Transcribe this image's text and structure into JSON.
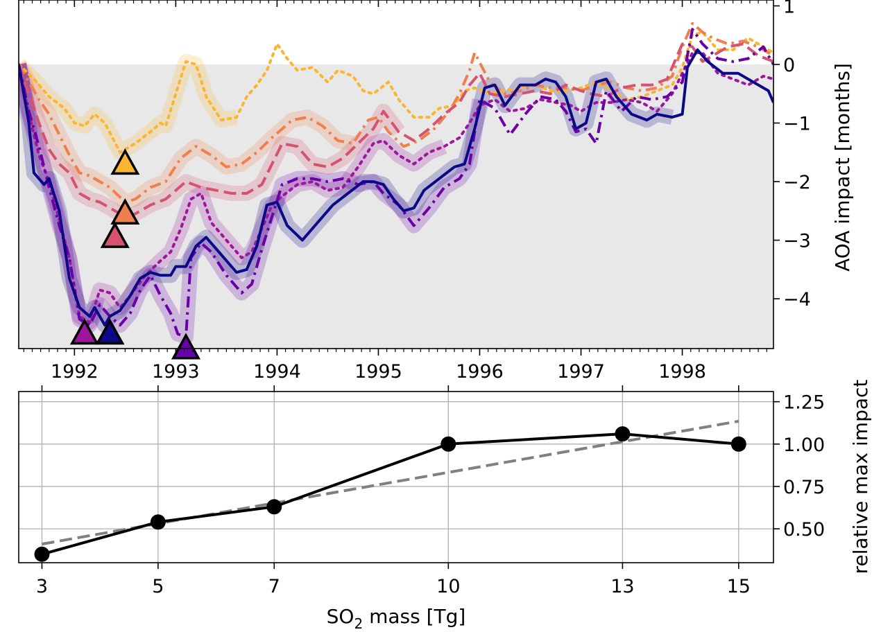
{
  "chart_data": [
    {
      "type": "line",
      "xlim": [
        1991.45,
        1998.9
      ],
      "ylim": [
        -4.85,
        1.1
      ],
      "x_ticks": [
        1992,
        1993,
        1994,
        1995,
        1996,
        1997,
        1998
      ],
      "x_tick_labels": [
        "1992",
        "1993",
        "1994",
        "1995",
        "1996",
        "1997",
        "1998"
      ],
      "y_ticks": [
        -4,
        -3,
        -2,
        -1,
        0,
        1
      ],
      "y_tick_labels": [
        "−4",
        "−3",
        "−2",
        "−1",
        "0",
        "1"
      ],
      "ylabel": "AOA impact [months]",
      "yaxis_side": "right",
      "background": "#e8e8e8",
      "series": [
        {
          "color": "#fcb52e",
          "style": "dotted",
          "x": [
            1991.45,
            1991.6,
            1991.75,
            1991.9,
            1992.0,
            1992.1,
            1992.2,
            1992.3,
            1992.45,
            1992.6,
            1992.75,
            1992.85,
            1992.9,
            1993.0,
            1993.1,
            1993.2,
            1993.3,
            1993.45,
            1993.6,
            1993.7,
            1993.8,
            1993.9,
            1994.0,
            1994.1,
            1994.2,
            1994.35,
            1994.5,
            1994.6,
            1994.75,
            1994.85,
            1994.95,
            1995.1,
            1995.2,
            1995.35,
            1995.5,
            1995.6,
            1995.75,
            1995.85,
            1995.95,
            1996.1,
            1996.25,
            1996.4,
            1996.55,
            1996.7,
            1996.85,
            1997.0,
            1997.15,
            1997.3,
            1997.45,
            1997.6,
            1997.75,
            1997.9,
            1998.0,
            1998.1,
            1998.2,
            1998.35,
            1998.5,
            1998.65,
            1998.8,
            1998.9
          ],
          "y": [
            0.0,
            -0.25,
            -0.55,
            -0.75,
            -1.0,
            -1.05,
            -0.85,
            -1.0,
            -1.5,
            -1.35,
            -1.15,
            -1.0,
            -1.05,
            -0.5,
            0.05,
            0.0,
            -0.55,
            -0.95,
            -0.9,
            -0.55,
            -0.35,
            -0.1,
            0.35,
            0.1,
            -0.1,
            -0.05,
            -0.3,
            -0.1,
            -0.2,
            -0.45,
            -0.5,
            -0.3,
            -0.6,
            -0.9,
            -0.9,
            -0.75,
            -0.7,
            -0.45,
            -0.4,
            -0.5,
            -0.45,
            -0.4,
            -0.35,
            -0.45,
            -0.45,
            -0.4,
            -0.3,
            -0.45,
            -0.6,
            -0.55,
            -0.45,
            -0.35,
            -0.05,
            0.5,
            0.55,
            0.25,
            0.25,
            0.45,
            0.3,
            0.2
          ],
          "envelope_end": 1993.6
        },
        {
          "color": "#f07f4f",
          "style": "dashdot",
          "x": [
            1991.45,
            1991.55,
            1991.65,
            1991.75,
            1991.85,
            1991.95,
            1992.05,
            1992.15,
            1992.25,
            1992.35,
            1992.5,
            1992.6,
            1992.75,
            1992.9,
            1993.05,
            1993.2,
            1993.35,
            1993.5,
            1993.65,
            1993.8,
            1993.95,
            1994.05,
            1994.15,
            1994.3,
            1994.45,
            1994.6,
            1994.75,
            1994.9,
            1995.0,
            1995.1,
            1995.25,
            1995.4,
            1995.55,
            1995.7,
            1995.8,
            1995.9,
            1995.95,
            1996.1,
            1996.25,
            1996.4,
            1996.55,
            1996.7,
            1996.85,
            1997.0,
            1997.15,
            1997.3,
            1997.45,
            1997.6,
            1997.75,
            1997.9,
            1998.0,
            1998.1,
            1998.2,
            1998.3,
            1998.45,
            1998.6,
            1998.75,
            1998.9
          ],
          "y": [
            0.0,
            -0.3,
            -0.6,
            -0.85,
            -1.2,
            -1.55,
            -1.85,
            -1.9,
            -2.0,
            -2.1,
            -2.35,
            -2.3,
            -2.1,
            -2.0,
            -1.6,
            -1.4,
            -1.55,
            -1.75,
            -1.7,
            -1.5,
            -1.25,
            -1.1,
            -0.95,
            -0.9,
            -1.05,
            -1.3,
            -1.35,
            -0.95,
            -0.9,
            -1.15,
            -1.4,
            -1.3,
            -1.1,
            -0.8,
            -0.5,
            -0.1,
            0.2,
            -0.3,
            -0.5,
            -0.45,
            -0.35,
            -0.4,
            -0.4,
            -0.45,
            -0.35,
            -0.3,
            -0.4,
            -0.45,
            -0.4,
            -0.2,
            0.3,
            0.7,
            0.55,
            0.45,
            0.35,
            0.4,
            0.3,
            0.15
          ],
          "envelope_end": 1994.85
        },
        {
          "color": "#d5536f",
          "style": "dashed",
          "x": [
            1991.45,
            1991.55,
            1991.65,
            1991.75,
            1991.85,
            1991.95,
            1992.05,
            1992.15,
            1992.25,
            1992.35,
            1992.5,
            1992.6,
            1992.75,
            1992.9,
            1993.0,
            1993.1,
            1993.25,
            1993.4,
            1993.55,
            1993.7,
            1993.85,
            1993.95,
            1994.05,
            1994.2,
            1994.35,
            1994.5,
            1994.65,
            1994.8,
            1994.95,
            1995.05,
            1995.2,
            1995.35,
            1995.5,
            1995.65,
            1995.8,
            1995.9,
            1996.0,
            1996.1,
            1996.25,
            1996.4,
            1996.55,
            1996.7,
            1996.85,
            1997.0,
            1997.1,
            1997.25,
            1997.4,
            1997.55,
            1997.7,
            1997.85,
            1998.0,
            1998.1,
            1998.2,
            1998.3,
            1998.45,
            1998.6,
            1998.75,
            1998.9
          ],
          "y": [
            0.0,
            -0.5,
            -1.0,
            -1.45,
            -1.7,
            -1.85,
            -2.2,
            -2.3,
            -2.35,
            -2.45,
            -2.6,
            -2.55,
            -2.4,
            -2.3,
            -2.15,
            -2.0,
            -2.1,
            -2.15,
            -2.2,
            -2.2,
            -2.05,
            -1.7,
            -1.35,
            -1.4,
            -1.7,
            -1.75,
            -1.6,
            -1.35,
            -1.1,
            -0.8,
            -1.15,
            -1.3,
            -1.1,
            -0.85,
            -0.65,
            -0.35,
            -0.15,
            -0.5,
            -0.55,
            -0.5,
            -0.45,
            -0.5,
            -0.35,
            -0.45,
            -0.5,
            -0.55,
            -0.4,
            -0.35,
            -0.35,
            -0.25,
            0.35,
            0.3,
            0.05,
            0.15,
            0.3,
            0.35,
            0.15,
            0.05
          ],
          "envelope_end": 1995.25
        },
        {
          "color": "#9c179e",
          "style": "dotted",
          "x": [
            1991.45,
            1991.55,
            1991.65,
            1991.75,
            1991.85,
            1991.95,
            1992.05,
            1992.15,
            1992.25,
            1992.35,
            1992.45,
            1992.55,
            1992.7,
            1992.85,
            1992.95,
            1993.05,
            1993.15,
            1993.25,
            1993.35,
            1993.5,
            1993.65,
            1993.75,
            1993.85,
            1993.95,
            1994.05,
            1994.2,
            1994.35,
            1994.5,
            1994.65,
            1994.8,
            1994.95,
            1995.05,
            1995.2,
            1995.35,
            1995.5,
            1995.65,
            1995.8,
            1995.9,
            1996.0,
            1996.15,
            1996.3,
            1996.45,
            1996.6,
            1996.75,
            1996.9,
            1997.0,
            1997.15,
            1997.3,
            1997.45,
            1997.6,
            1997.75,
            1997.9,
            1998.0,
            1998.1,
            1998.2,
            1998.35,
            1998.5,
            1998.65,
            1998.8,
            1998.9
          ],
          "y": [
            0.0,
            -0.85,
            -1.55,
            -2.0,
            -2.65,
            -3.3,
            -4.3,
            -4.4,
            -3.85,
            -3.9,
            -4.15,
            -3.95,
            -3.6,
            -3.35,
            -3.2,
            -2.8,
            -2.3,
            -2.2,
            -2.7,
            -3.0,
            -3.3,
            -3.2,
            -2.8,
            -2.4,
            -2.25,
            -2.05,
            -2.0,
            -2.15,
            -2.1,
            -1.75,
            -1.35,
            -1.3,
            -1.55,
            -1.7,
            -1.5,
            -1.4,
            -1.25,
            -1.0,
            -0.7,
            -0.6,
            -0.8,
            -0.75,
            -0.6,
            -0.65,
            -0.7,
            -0.8,
            -0.65,
            -0.65,
            -0.6,
            -0.65,
            -0.8,
            -0.5,
            -0.15,
            0.2,
            0.2,
            -0.15,
            -0.25,
            -0.35,
            -0.2,
            -0.25
          ],
          "envelope_end": 1995.75
        },
        {
          "color": "#6a00a8",
          "style": "dashdot",
          "x": [
            1991.45,
            1991.55,
            1991.65,
            1991.75,
            1991.85,
            1991.95,
            1992.05,
            1992.15,
            1992.25,
            1992.35,
            1992.45,
            1992.55,
            1992.65,
            1992.75,
            1992.85,
            1992.95,
            1993.02,
            1993.1,
            1993.15,
            1993.25,
            1993.35,
            1993.5,
            1993.65,
            1993.75,
            1993.85,
            1993.95,
            1994.05,
            1994.2,
            1994.35,
            1994.5,
            1994.65,
            1994.8,
            1994.95,
            1995.05,
            1995.2,
            1995.35,
            1995.5,
            1995.65,
            1995.8,
            1995.9,
            1996.0,
            1996.15,
            1996.3,
            1996.45,
            1996.6,
            1996.75,
            1996.85,
            1996.95,
            1997.05,
            1997.15,
            1997.25,
            1997.4,
            1997.55,
            1997.7,
            1997.85,
            1998.0,
            1998.1,
            1998.2,
            1998.35,
            1998.5,
            1998.65,
            1998.8,
            1998.9
          ],
          "y": [
            0.0,
            -0.8,
            -1.4,
            -2.1,
            -2.75,
            -3.3,
            -4.35,
            -4.45,
            -4.1,
            -4.3,
            -4.45,
            -4.25,
            -3.85,
            -3.6,
            -3.95,
            -4.25,
            -4.6,
            -4.65,
            -3.3,
            -3.05,
            -3.2,
            -3.6,
            -3.9,
            -3.75,
            -3.15,
            -2.6,
            -2.05,
            -1.95,
            -1.95,
            -2.0,
            -1.95,
            -2.05,
            -2.0,
            -2.2,
            -2.4,
            -2.75,
            -2.45,
            -2.1,
            -1.95,
            -1.7,
            -0.6,
            -0.75,
            -1.2,
            -0.85,
            -0.55,
            -0.6,
            -0.8,
            -1.15,
            -1.1,
            -1.35,
            -0.45,
            -0.8,
            -0.55,
            -0.6,
            -0.55,
            -0.3,
            0.6,
            0.35,
            0.1,
            0.05,
            0.1,
            0.3,
            0.0
          ],
          "envelope_end": 1996.0
        },
        {
          "color": "#0d0887",
          "style": "solid",
          "x": [
            1991.45,
            1991.55,
            1991.6,
            1991.7,
            1991.75,
            1991.85,
            1991.95,
            1992.05,
            1992.15,
            1992.2,
            1992.3,
            1992.35,
            1992.45,
            1992.55,
            1992.65,
            1992.75,
            1992.85,
            1992.95,
            1993.0,
            1993.1,
            1993.2,
            1993.3,
            1993.45,
            1993.6,
            1993.7,
            1993.8,
            1993.9,
            1994.0,
            1994.1,
            1994.25,
            1994.4,
            1994.55,
            1994.7,
            1994.85,
            1994.95,
            1995.05,
            1995.15,
            1995.25,
            1995.35,
            1995.45,
            1995.6,
            1995.75,
            1995.85,
            1995.95,
            1996.05,
            1996.15,
            1996.25,
            1996.4,
            1996.55,
            1996.65,
            1996.75,
            1996.85,
            1996.95,
            1997.05,
            1997.15,
            1997.25,
            1997.35,
            1997.5,
            1997.65,
            1997.75,
            1997.9,
            1998.0,
            1998.05,
            1998.15,
            1998.25,
            1998.4,
            1998.55,
            1998.7,
            1998.85,
            1998.9
          ],
          "y": [
            0.0,
            -1.0,
            -1.85,
            -2.05,
            -1.95,
            -2.5,
            -3.65,
            -4.15,
            -4.3,
            -4.15,
            -4.45,
            -4.3,
            -4.2,
            -3.95,
            -3.65,
            -3.55,
            -3.6,
            -3.6,
            -3.45,
            -3.45,
            -3.1,
            -2.95,
            -3.25,
            -3.55,
            -3.5,
            -3.1,
            -2.4,
            -2.35,
            -2.75,
            -3.0,
            -2.7,
            -2.4,
            -2.2,
            -2.0,
            -2.0,
            -2.05,
            -2.3,
            -2.5,
            -2.45,
            -2.15,
            -1.95,
            -1.75,
            -1.7,
            -1.1,
            -0.4,
            -0.35,
            -0.7,
            -0.35,
            -0.35,
            -0.25,
            -0.3,
            -0.55,
            -1.1,
            -1.0,
            -0.3,
            -0.25,
            -0.55,
            -0.85,
            -0.95,
            -0.85,
            -0.9,
            -0.85,
            -0.05,
            0.25,
            0.05,
            -0.15,
            -0.15,
            -0.3,
            -0.45,
            -0.65
          ],
          "envelope_end": 1997.9
        }
      ],
      "markers": [
        {
          "x": 1992.5,
          "y": -1.7,
          "color": "#fcb52e"
        },
        {
          "x": 1992.5,
          "y": -2.55,
          "color": "#f07f4f"
        },
        {
          "x": 1992.4,
          "y": -2.95,
          "color": "#d5536f"
        },
        {
          "x": 1992.1,
          "y": -4.6,
          "color": "#9c179e"
        },
        {
          "x": 1992.35,
          "y": -4.6,
          "color": "#0d0887"
        },
        {
          "x": 1993.1,
          "y": -4.85,
          "color": "#6a00a8"
        }
      ]
    },
    {
      "type": "line",
      "x": [
        3,
        5,
        7,
        10,
        13,
        15
      ],
      "y": [
        0.35,
        0.54,
        0.63,
        1.0,
        1.06,
        1.0
      ],
      "fit_line": {
        "x": [
          3,
          15
        ],
        "y": [
          0.41,
          1.135
        ],
        "color": "#808080",
        "style": "dashed"
      },
      "xlim": [
        2.6,
        15.6
      ],
      "ylim": [
        0.3,
        1.31
      ],
      "x_ticks": [
        3,
        5,
        7,
        10,
        13,
        15
      ],
      "x_tick_labels": [
        "3",
        "5",
        "7",
        "10",
        "13",
        "15"
      ],
      "y_ticks": [
        0.5,
        0.75,
        1.0,
        1.25
      ],
      "y_tick_labels": [
        "0.50",
        "0.75",
        "1.00",
        "1.25"
      ],
      "xlabel_main": "SO",
      "xlabel_sub": "2",
      "xlabel_rest": " mass [Tg]",
      "ylabel": "relative max impact",
      "yaxis_side": "right",
      "grid": true
    }
  ]
}
